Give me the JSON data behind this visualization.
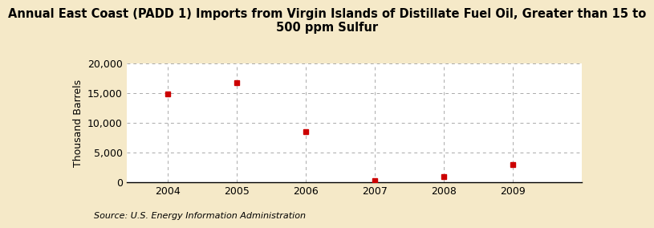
{
  "title_line1": "Annual East Coast (PADD 1) Imports from Virgin Islands of Distillate Fuel Oil, Greater than 15 to",
  "title_line2": "500 ppm Sulfur",
  "ylabel": "Thousand Barrels",
  "source": "Source: U.S. Energy Information Administration",
  "years": [
    2004,
    2005,
    2006,
    2007,
    2008,
    2009
  ],
  "values": [
    14800,
    16700,
    8500,
    350,
    950,
    3050
  ],
  "marker_color": "#cc0000",
  "background_color": "#f5e9c8",
  "plot_bg_color": "#ffffff",
  "grid_color": "#aaaaaa",
  "ylim": [
    0,
    20000
  ],
  "yticks": [
    0,
    5000,
    10000,
    15000,
    20000
  ],
  "xlim": [
    2003.4,
    2010.0
  ],
  "title_fontsize": 10.5,
  "axis_label_fontsize": 9,
  "tick_fontsize": 9,
  "source_fontsize": 8
}
